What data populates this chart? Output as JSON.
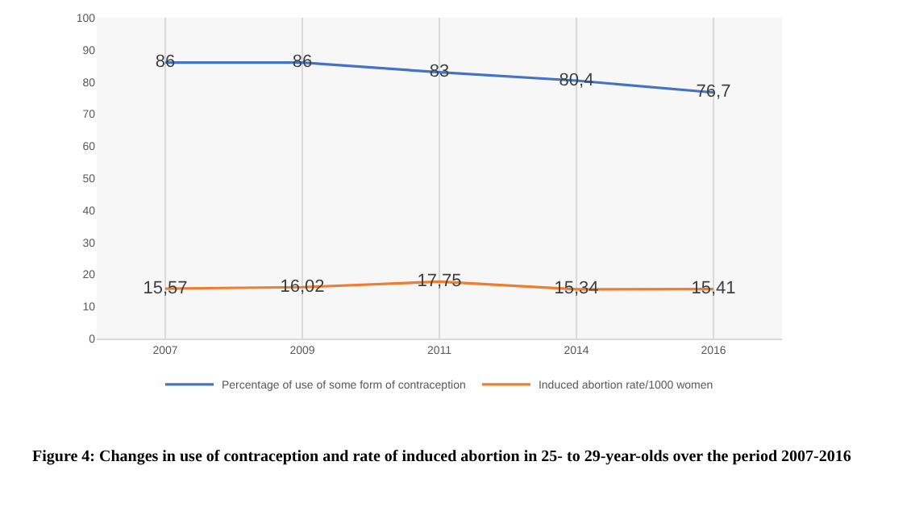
{
  "chart_data": {
    "type": "line",
    "categories": [
      "2007",
      "2009",
      "2011",
      "2014",
      "2016"
    ],
    "series": [
      {
        "name": "Percentage of use of some form of contraception",
        "color": "#4472c4",
        "values": [
          86,
          86,
          83,
          80.4,
          76.7
        ],
        "value_labels": [
          "86",
          "86",
          "83",
          "80,4",
          "76,7"
        ]
      },
      {
        "name": "Induced abortion rate/1000 women",
        "color": "#ed7d31",
        "values": [
          15.57,
          16.02,
          17.75,
          15.34,
          15.41
        ],
        "value_labels": [
          "15,57",
          "16,02",
          "17,75",
          "15,34",
          "15,41"
        ]
      }
    ],
    "ylim": [
      0,
      100
    ],
    "yticks": [
      0,
      10,
      20,
      30,
      40,
      50,
      60,
      70,
      80,
      90,
      100
    ],
    "grid": "x",
    "legend": "bottom",
    "marker": "none",
    "line_style": "solid",
    "annotations": [
      "Figure 4: Changes in use of contraception and rate of induced abortion in 25- to 29-year-olds over the period 2007-2016"
    ]
  }
}
